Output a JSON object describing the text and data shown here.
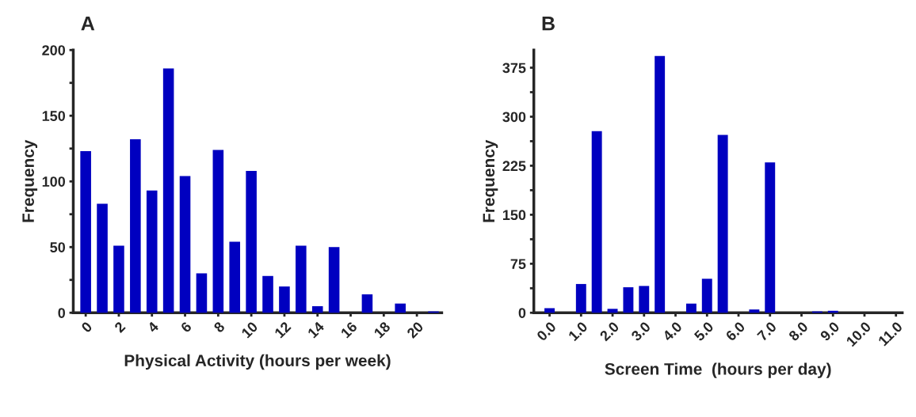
{
  "chart_data": [
    {
      "type": "bar",
      "title": "A",
      "xlabel": "Physical Activity (hours per week)",
      "ylabel": "Frequency",
      "x": [
        0,
        1,
        2,
        3,
        4,
        5,
        6,
        7,
        8,
        9,
        10,
        11,
        12,
        13,
        14,
        15,
        16,
        17,
        18,
        19,
        20,
        21
      ],
      "values": [
        123,
        83,
        51,
        132,
        93,
        186,
        104,
        30,
        124,
        54,
        108,
        28,
        20,
        51,
        5,
        50,
        0,
        14,
        0,
        7,
        0,
        1
      ],
      "color": "#0000c0",
      "xlim": [
        -0.75,
        21.5
      ],
      "xticks": [
        0,
        2,
        4,
        6,
        8,
        10,
        12,
        14,
        16,
        18,
        20
      ],
      "ylim": [
        0,
        200
      ],
      "yticks": [
        0,
        {
          "value": 25,
          "label": null
        },
        50,
        {
          "value": 75,
          "label": null
        },
        100,
        {
          "value": 125,
          "label": null
        },
        150,
        {
          "value": 175,
          "label": null
        },
        200
      ],
      "grid": false
    },
    {
      "type": "bar",
      "title": "B",
      "xlabel": "Screen Time  (hours per day)",
      "ylabel": "Frequency",
      "x": [
        0.0,
        1.0,
        1.5,
        2.0,
        2.5,
        3.0,
        3.5,
        4.5,
        5.0,
        5.5,
        6.5,
        7.0,
        8.5,
        9.0
      ],
      "values": [
        7,
        44,
        278,
        6,
        39,
        41,
        393,
        14,
        52,
        272,
        5,
        230,
        2,
        3
      ],
      "color": "#0000c0",
      "xlim": [
        -0.5,
        11.2
      ],
      "xticks": [
        {
          "value": 0,
          "label": "0.0"
        },
        {
          "value": 1,
          "label": "1.0"
        },
        {
          "value": 2,
          "label": "2.0"
        },
        {
          "value": 3,
          "label": "3.0"
        },
        {
          "value": 4,
          "label": "4.0"
        },
        {
          "value": 5,
          "label": "5.0"
        },
        {
          "value": 6,
          "label": "6.0"
        },
        {
          "value": 7,
          "label": "7.0"
        },
        {
          "value": 8,
          "label": "8.0"
        },
        {
          "value": 9,
          "label": "9.0"
        },
        {
          "value": 10,
          "label": "10.0"
        },
        {
          "value": 11,
          "label": "11.0"
        }
      ],
      "ylim": [
        0,
        402
      ],
      "yticks": [
        0,
        {
          "value": 37.5,
          "label": null
        },
        75,
        {
          "value": 112.5,
          "label": null
        },
        150,
        {
          "value": 187.5,
          "label": null
        },
        225,
        {
          "value": 262.5,
          "label": null
        },
        300,
        {
          "value": 337.5,
          "label": null
        },
        375
      ],
      "grid": false
    }
  ]
}
